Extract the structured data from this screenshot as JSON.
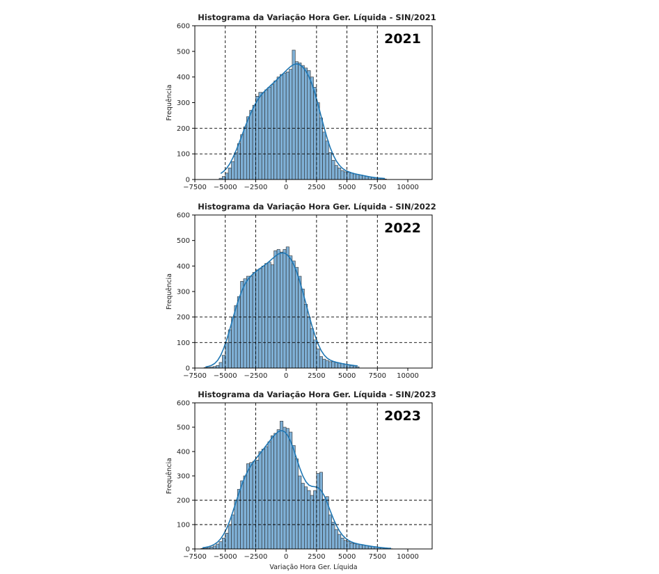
{
  "chart_data": [
    {
      "type": "histogram",
      "title": "Histograma da Variação Hora Ger. Líquida - SIN/2021",
      "annotation": "2021",
      "xlabel": "",
      "ylabel": "Frequência",
      "xlim": [
        -7500,
        12000
      ],
      "ylim": [
        0,
        600
      ],
      "xticks": [
        "−7500",
        "−5000",
        "−2500",
        "0",
        "2500",
        "5000",
        "7500",
        "10000"
      ],
      "yticks": [
        "0",
        "100",
        "200",
        "300",
        "400",
        "500",
        "600"
      ],
      "grid": "dashed lines at x = −5000, −2500, 2500, 5000, 7500 and y = 100, 200",
      "bin_start": -5500,
      "bin_width": 250,
      "values": [
        5,
        12,
        25,
        45,
        70,
        105,
        140,
        175,
        205,
        245,
        270,
        290,
        325,
        340,
        340,
        350,
        360,
        370,
        385,
        400,
        410,
        415,
        420,
        430,
        505,
        460,
        455,
        445,
        435,
        425,
        400,
        360,
        300,
        240,
        185,
        150,
        105,
        75,
        55,
        45,
        35,
        30,
        28,
        25,
        22,
        20,
        18,
        15,
        12,
        10,
        8,
        6,
        5,
        3,
        2
      ],
      "kde_color": "#1f77b4",
      "bar_color": "#7fb0d6"
    },
    {
      "type": "histogram",
      "title": "Histograma da Variação Hora Ger. Líquida - SIN/2022",
      "annotation": "2022",
      "xlabel": "",
      "ylabel": "Frequência",
      "xlim": [
        -7500,
        12000
      ],
      "ylim": [
        0,
        600
      ],
      "xticks": [
        "−7500",
        "−5000",
        "−2500",
        "0",
        "2500",
        "5000",
        "7500",
        "10000"
      ],
      "yticks": [
        "0",
        "100",
        "200",
        "300",
        "400",
        "500",
        "600"
      ],
      "grid": "dashed lines at x = −5000, −2500, 2500, 5000, 7500 and y = 100, 200",
      "bin_start": -6750,
      "bin_width": 250,
      "values": [
        2,
        3,
        4,
        6,
        10,
        22,
        50,
        100,
        150,
        200,
        245,
        280,
        340,
        350,
        360,
        360,
        375,
        385,
        390,
        400,
        410,
        415,
        405,
        460,
        465,
        455,
        465,
        475,
        440,
        420,
        395,
        360,
        310,
        250,
        200,
        155,
        110,
        75,
        45,
        35,
        30,
        25,
        25,
        22,
        20,
        18,
        15,
        12,
        10,
        8,
        5
      ],
      "kde_color": "#1f77b4",
      "bar_color": "#7fb0d6"
    },
    {
      "type": "histogram",
      "title": "Histograma da Variação Hora Ger. Líquida - SIN/2023",
      "annotation": "2023",
      "xlabel": "Variação Hora Ger. Líquida",
      "ylabel": "Frequência",
      "xlim": [
        -7500,
        12000
      ],
      "ylim": [
        0,
        600
      ],
      "xticks": [
        "−7500",
        "−5000",
        "−2500",
        "0",
        "2500",
        "5000",
        "7500",
        "10000"
      ],
      "yticks": [
        "0",
        "100",
        "200",
        "300",
        "400",
        "500",
        "600"
      ],
      "grid": "dashed lines at x = −5000, −2500, 2500, 5000, 7500 and y = 100, 200",
      "bin_start": -7000,
      "bin_width": 250,
      "values": [
        2,
        3,
        5,
        8,
        12,
        20,
        30,
        45,
        65,
        95,
        140,
        200,
        245,
        280,
        300,
        350,
        355,
        360,
        365,
        400,
        410,
        420,
        440,
        465,
        475,
        490,
        525,
        500,
        495,
        480,
        425,
        370,
        300,
        270,
        255,
        240,
        220,
        240,
        310,
        315,
        205,
        215,
        140,
        110,
        80,
        60,
        45,
        35,
        30,
        25,
        22,
        20,
        18,
        16,
        14,
        12,
        10,
        8,
        6,
        4,
        3,
        2,
        1
      ],
      "kde_color": "#1f77b4",
      "bar_color": "#7fb0d6"
    }
  ]
}
